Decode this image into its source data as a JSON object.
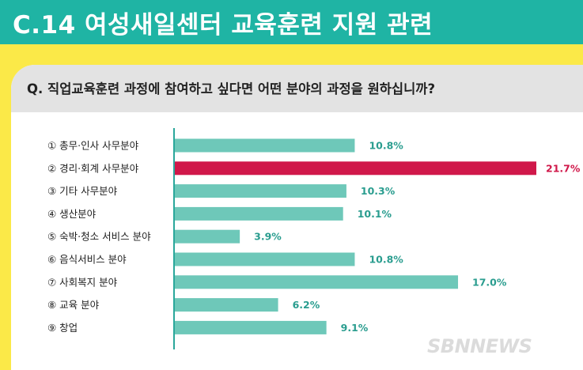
{
  "header": {
    "title": "C.14 여성새일센터 교육훈련 지원 관련"
  },
  "question": {
    "text": "Q. 직업교육훈련 과정에 참여하고 싶다면 어떤 분야의 과정을 원하십니까?"
  },
  "watermark": "SBNNEWS",
  "colors": {
    "bar": "#6ec8b9",
    "highlight": "#d0184a",
    "value_text": "#2a9d8f",
    "highlight_text": "#d0184a",
    "axis": "#2aa79b"
  },
  "chart_data": {
    "type": "bar",
    "orientation": "horizontal",
    "title": "",
    "xlabel": "",
    "ylabel": "",
    "categories": [
      "① 총무·인사 사무분야",
      "② 경리·회계 사무분야",
      "③ 기타 사무분야",
      "④ 생산분야",
      "⑤ 숙박·청소 서비스 분야",
      "⑥ 음식서비스 분야",
      "⑦ 사회복지 분야",
      "⑧ 교육 분야",
      "⑨ 창업"
    ],
    "values": [
      10.8,
      21.7,
      10.3,
      10.1,
      3.9,
      10.8,
      17.0,
      6.2,
      9.1
    ],
    "value_labels": [
      "10.8%",
      "21.7%",
      "10.3%",
      "10.1%",
      "3.9%",
      "10.8%",
      "17.0%",
      "6.2%",
      "9.1%"
    ],
    "highlight_index": 1,
    "xlim": [
      0,
      21.7
    ],
    "grid": false,
    "legend": "none"
  }
}
